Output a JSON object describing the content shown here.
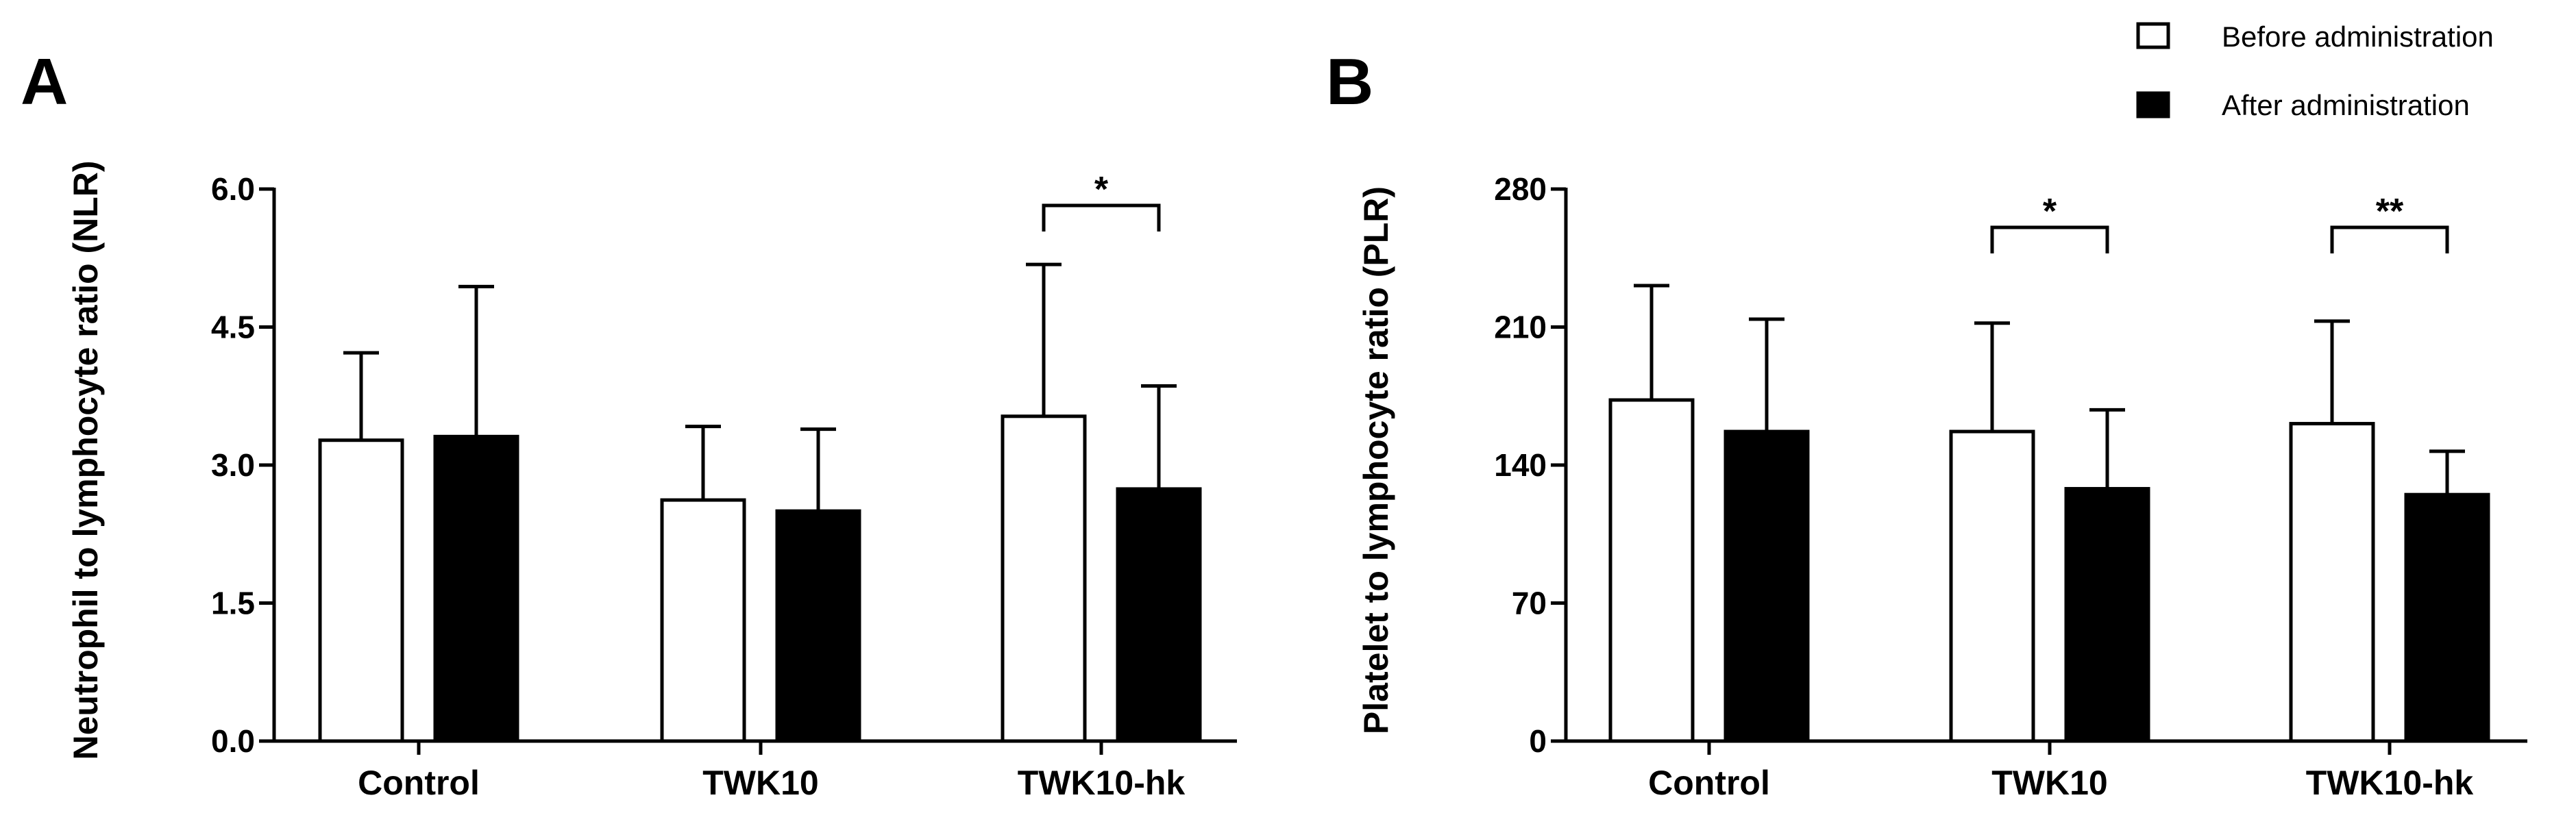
{
  "legend": {
    "items": [
      {
        "label": "Before administration",
        "fill": "#ffffff"
      },
      {
        "label": "After administration",
        "fill": "#000000"
      }
    ]
  },
  "chart_data": [
    {
      "type": "bar",
      "panel": "A",
      "ylabel": "Neutrophil to lymphocyte ratio (NLR)",
      "ylim": [
        0,
        6.0
      ],
      "yticks": [
        "0.0",
        "1.5",
        "3.0",
        "4.5",
        "6.0"
      ],
      "categories": [
        "Control",
        "TWK10",
        "TWK10-hk"
      ],
      "series": [
        {
          "name": "Before administration",
          "values": [
            3.27,
            2.62,
            3.53
          ],
          "errors": [
            0.95,
            0.8,
            1.65
          ]
        },
        {
          "name": "After administration",
          "values": [
            3.31,
            2.5,
            2.74
          ],
          "errors": [
            1.63,
            0.89,
            1.12
          ]
        }
      ],
      "significance": [
        {
          "category": "TWK10-hk",
          "label": "*"
        }
      ]
    },
    {
      "type": "bar",
      "panel": "B",
      "ylabel": "Platelet to lymphocyte ratio (PLR)",
      "ylim": [
        0,
        280
      ],
      "yticks": [
        "0",
        "70",
        "140",
        "210",
        "280"
      ],
      "categories": [
        "Control",
        "TWK10",
        "TWK10-hk"
      ],
      "series": [
        {
          "name": "Before administration",
          "values": [
            173,
            157,
            161
          ],
          "errors": [
            58,
            55,
            52
          ]
        },
        {
          "name": "After administration",
          "values": [
            157,
            128,
            125
          ],
          "errors": [
            57,
            40,
            22
          ]
        }
      ],
      "significance": [
        {
          "category": "TWK10",
          "label": "*"
        },
        {
          "category": "TWK10-hk",
          "label": "**"
        }
      ]
    }
  ]
}
